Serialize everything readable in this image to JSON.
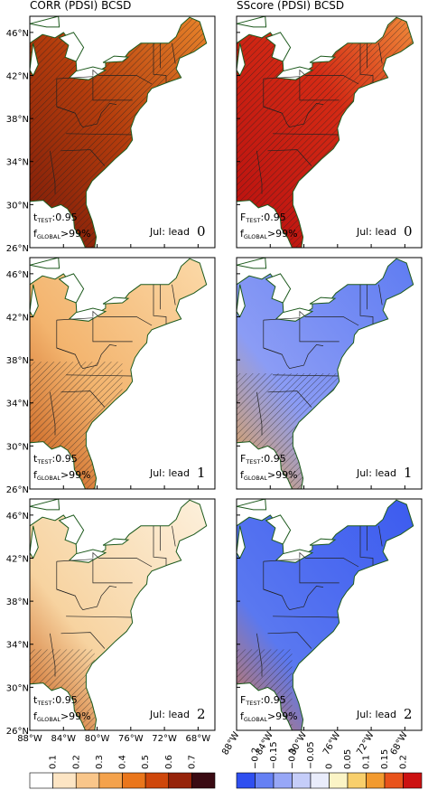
{
  "columns": [
    {
      "title": "CORR (PDSI) BCSD"
    },
    {
      "title": "SScore (PDSI) BCSD"
    }
  ],
  "panels": [
    {
      "test": {
        "symbol": "t",
        "sub": "TEST",
        "value": ":0.95"
      },
      "global": {
        "symbol": "f",
        "sub": "GLOBAL",
        "value": ">99%"
      },
      "month": "Jul: lead",
      "lead": "0"
    },
    {
      "test": {
        "symbol": "F",
        "sub": "TEST",
        "value": ":0.95"
      },
      "global": {
        "symbol": "f",
        "sub": "GLOBAL",
        "value": ">99%"
      },
      "month": "Jul: lead",
      "lead": "0"
    },
    {
      "test": {
        "symbol": "t",
        "sub": "TEST",
        "value": ":0.95"
      },
      "global": {
        "symbol": "f",
        "sub": "GLOBAL",
        "value": ">99%"
      },
      "month": "Jul: lead",
      "lead": "1"
    },
    {
      "test": {
        "symbol": "F",
        "sub": "TEST",
        "value": ":0.95"
      },
      "global": {
        "symbol": "f",
        "sub": "GLOBAL",
        "value": ">99%"
      },
      "month": "Jul: lead",
      "lead": "1"
    },
    {
      "test": {
        "symbol": "t",
        "sub": "TEST",
        "value": ":0.95"
      },
      "global": {
        "symbol": "f",
        "sub": "GLOBAL",
        "value": ">99%"
      },
      "month": "Jul: lead",
      "lead": "2"
    },
    {
      "test": {
        "symbol": "F",
        "sub": "TEST",
        "value": ":0.95"
      },
      "global": {
        "symbol": "f",
        "sub": "GLOBAL",
        "value": ">99%"
      },
      "month": "Jul: lead",
      "lead": "2"
    }
  ],
  "lat_labels": [
    "46°N",
    "42°N",
    "38°N",
    "34°N",
    "30°N",
    "26°N"
  ],
  "lon_labels": [
    "88°W",
    "84°W",
    "80°W",
    "76°W",
    "72°W",
    "68°W"
  ],
  "colorbars": [
    {
      "labels": [
        "0.1",
        "0.2",
        "0.3",
        "0.4",
        "0.5",
        "0.6",
        "0.7"
      ],
      "colors": [
        "#ffffff",
        "#fde5c4",
        "#f9c68a",
        "#f4a24c",
        "#ea761b",
        "#cf470b",
        "#962309",
        "#3a0a12"
      ]
    },
    {
      "labels": [
        "−0.2",
        "−0.15",
        "−0.1",
        "−0.05",
        "0",
        "0.05",
        "0.1",
        "0.15",
        "0.2"
      ],
      "colors": [
        "#2f4ff0",
        "#6580f4",
        "#97a7f7",
        "#c5cdf9",
        "#e9ecfb",
        "#fbf4c6",
        "#f8cf6c",
        "#f29a2f",
        "#e8521b",
        "#cc1111"
      ]
    }
  ]
}
